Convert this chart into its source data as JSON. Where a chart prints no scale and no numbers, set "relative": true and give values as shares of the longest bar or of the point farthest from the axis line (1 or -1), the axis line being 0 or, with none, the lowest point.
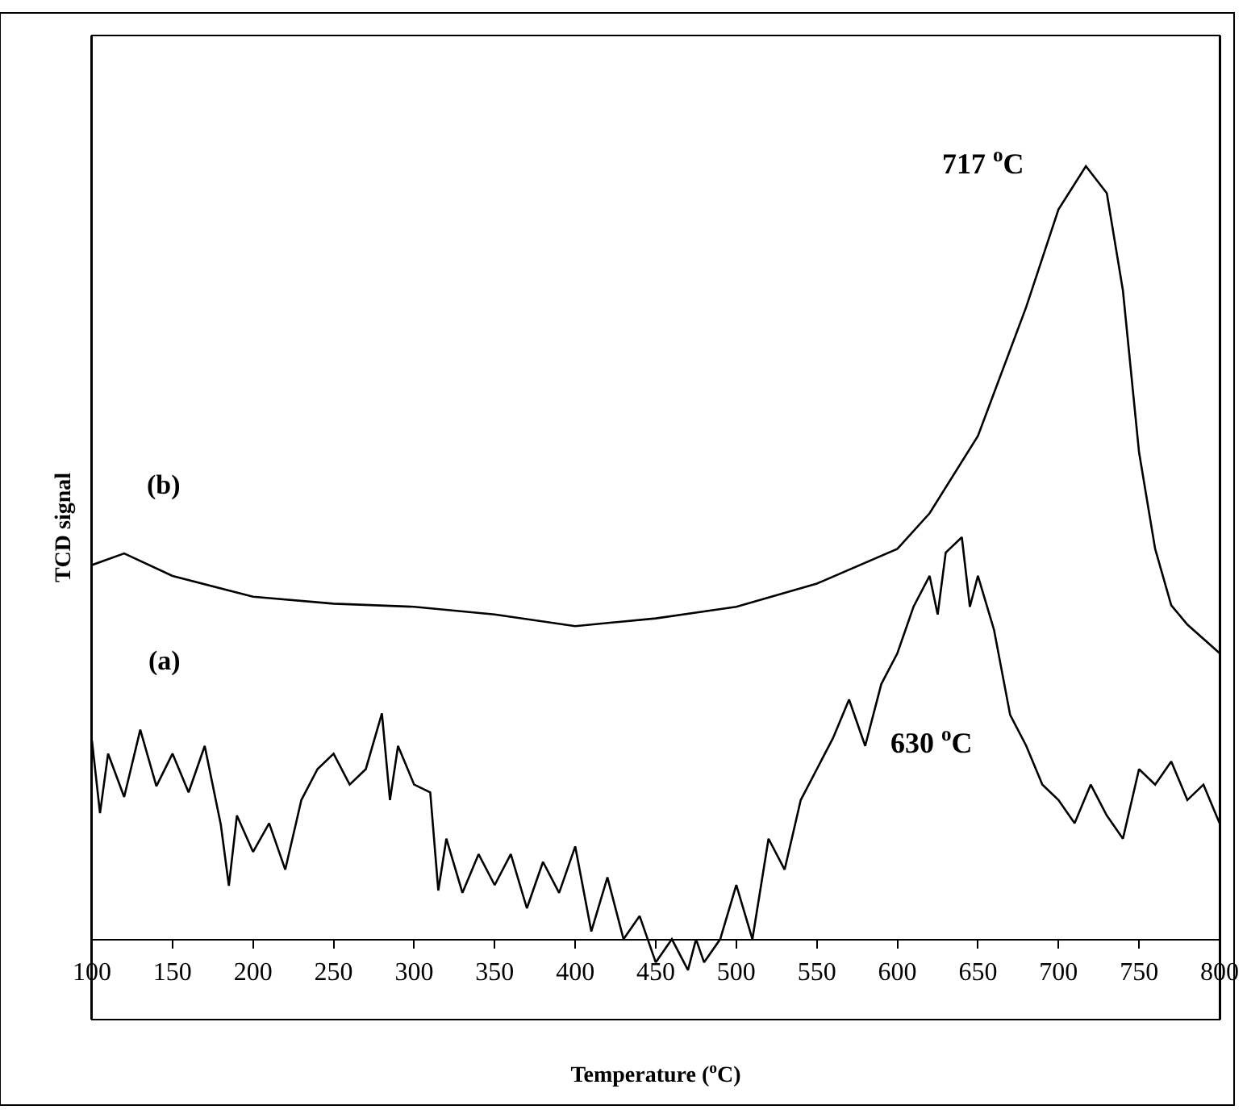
{
  "chart_data": {
    "type": "line",
    "relative": true,
    "xlabel": "Temperature ($^{o}$C)",
    "ylabel": "TCD signal",
    "xlim": [
      100,
      800
    ],
    "xticks": [
      100,
      150,
      200,
      250,
      300,
      350,
      400,
      450,
      500,
      550,
      600,
      650,
      700,
      750,
      800
    ],
    "grid": false,
    "legend": false,
    "marker": "none",
    "line_style": "solid",
    "tick_labels": "x",
    "annotations": [
      "717 $^{o}$C",
      "630 $^{o}$C"
    ],
    "series": [
      {
        "name": "(b)",
        "color": "#000000",
        "x": [
          100,
          120,
          150,
          200,
          250,
          300,
          350,
          400,
          450,
          500,
          550,
          600,
          620,
          650,
          680,
          700,
          717,
          730,
          740,
          750,
          760,
          770,
          780,
          800
        ],
        "values": [
          0.484,
          0.499,
          0.47,
          0.443,
          0.434,
          0.43,
          0.42,
          0.405,
          0.415,
          0.43,
          0.46,
          0.505,
          0.551,
          0.651,
          0.818,
          0.944,
          1,
          0.965,
          0.839,
          0.63,
          0.505,
          0.432,
          0.407,
          0.37
        ]
      },
      {
        "name": "(a)",
        "color": "#000000",
        "x": [
          100,
          105,
          110,
          120,
          130,
          140,
          150,
          160,
          170,
          180,
          185,
          190,
          200,
          210,
          220,
          230,
          240,
          250,
          260,
          270,
          280,
          285,
          290,
          300,
          310,
          315,
          320,
          330,
          340,
          350,
          360,
          370,
          380,
          390,
          400,
          410,
          420,
          430,
          440,
          450,
          460,
          470,
          475,
          480,
          490,
          500,
          510,
          520,
          530,
          540,
          550,
          560,
          570,
          580,
          590,
          600,
          610,
          620,
          625,
          630,
          640,
          645,
          650,
          660,
          670,
          680,
          690,
          700,
          710,
          720,
          730,
          740,
          750,
          760,
          770,
          780,
          790,
          800
        ],
        "values": [
          0.257,
          0.163,
          0.24,
          0.184,
          0.271,
          0.198,
          0.24,
          0.19,
          0.25,
          0.148,
          0.069,
          0.16,
          0.113,
          0.15,
          0.09,
          0.18,
          0.22,
          0.24,
          0.2,
          0.22,
          0.292,
          0.18,
          0.25,
          0.2,
          0.19,
          0.063,
          0.13,
          0.06,
          0.11,
          0.07,
          0.11,
          0.04,
          0.1,
          0.06,
          0.12,
          0.01,
          0.08,
          0,
          0.03,
          -0.03,
          0,
          -0.04,
          0,
          -0.03,
          0,
          0.07,
          0,
          0.13,
          0.09,
          0.18,
          0.22,
          0.26,
          0.31,
          0.25,
          0.33,
          0.37,
          0.43,
          0.47,
          0.42,
          0.5,
          0.52,
          0.43,
          0.47,
          0.4,
          0.29,
          0.25,
          0.2,
          0.18,
          0.15,
          0.2,
          0.16,
          0.13,
          0.22,
          0.2,
          0.23,
          0.18,
          0.2,
          0.15
        ]
      }
    ]
  }
}
